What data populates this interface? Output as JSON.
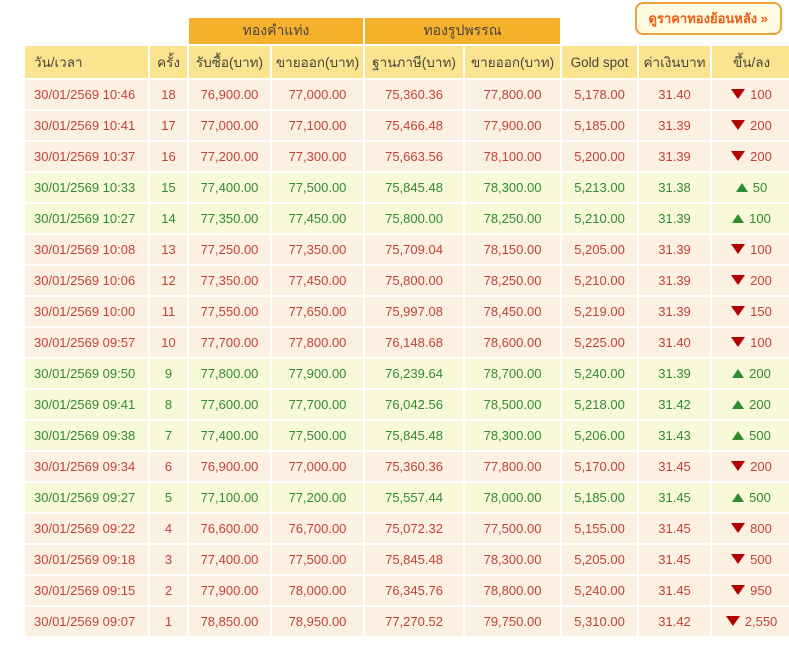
{
  "history_button": {
    "label": "ดูราคาทองย้อนหลัง »"
  },
  "table": {
    "group_headers": {
      "gold_bar": "ทองคำแท่ง",
      "gold_ornament": "ทองรูปพรรณ"
    },
    "columns": [
      "วัน/เวลา",
      "ครั้ง",
      "รับซื้อ(บาท)",
      "ขายออก(บาท)",
      "ฐานภาษี(บาท)",
      "ขายออก(บาท)",
      "Gold spot",
      "ค่าเงินบาท",
      "ขึ้น/ลง"
    ],
    "rows": [
      {
        "datetime": "30/01/2569 10:46",
        "round": "18",
        "bar_buy": "76,900.00",
        "bar_sell": "77,000.00",
        "orn_taxbase": "75,360.36",
        "orn_sell": "77,800.00",
        "gold_spot": "5,178.00",
        "baht_rate": "31.40",
        "direction": "down",
        "change": "100"
      },
      {
        "datetime": "30/01/2569 10:41",
        "round": "17",
        "bar_buy": "77,000.00",
        "bar_sell": "77,100.00",
        "orn_taxbase": "75,466.48",
        "orn_sell": "77,900.00",
        "gold_spot": "5,185.00",
        "baht_rate": "31.39",
        "direction": "down",
        "change": "200"
      },
      {
        "datetime": "30/01/2569 10:37",
        "round": "16",
        "bar_buy": "77,200.00",
        "bar_sell": "77,300.00",
        "orn_taxbase": "75,663.56",
        "orn_sell": "78,100.00",
        "gold_spot": "5,200.00",
        "baht_rate": "31.39",
        "direction": "down",
        "change": "200"
      },
      {
        "datetime": "30/01/2569 10:33",
        "round": "15",
        "bar_buy": "77,400.00",
        "bar_sell": "77,500.00",
        "orn_taxbase": "75,845.48",
        "orn_sell": "78,300.00",
        "gold_spot": "5,213.00",
        "baht_rate": "31.38",
        "direction": "up",
        "change": "50"
      },
      {
        "datetime": "30/01/2569 10:27",
        "round": "14",
        "bar_buy": "77,350.00",
        "bar_sell": "77,450.00",
        "orn_taxbase": "75,800.00",
        "orn_sell": "78,250.00",
        "gold_spot": "5,210.00",
        "baht_rate": "31.39",
        "direction": "up",
        "change": "100"
      },
      {
        "datetime": "30/01/2569 10:08",
        "round": "13",
        "bar_buy": "77,250.00",
        "bar_sell": "77,350.00",
        "orn_taxbase": "75,709.04",
        "orn_sell": "78,150.00",
        "gold_spot": "5,205.00",
        "baht_rate": "31.39",
        "direction": "down",
        "change": "100"
      },
      {
        "datetime": "30/01/2569 10:06",
        "round": "12",
        "bar_buy": "77,350.00",
        "bar_sell": "77,450.00",
        "orn_taxbase": "75,800.00",
        "orn_sell": "78,250.00",
        "gold_spot": "5,210.00",
        "baht_rate": "31.39",
        "direction": "down",
        "change": "200"
      },
      {
        "datetime": "30/01/2569 10:00",
        "round": "11",
        "bar_buy": "77,550.00",
        "bar_sell": "77,650.00",
        "orn_taxbase": "75,997.08",
        "orn_sell": "78,450.00",
        "gold_spot": "5,219.00",
        "baht_rate": "31.39",
        "direction": "down",
        "change": "150"
      },
      {
        "datetime": "30/01/2569 09:57",
        "round": "10",
        "bar_buy": "77,700.00",
        "bar_sell": "77,800.00",
        "orn_taxbase": "76,148.68",
        "orn_sell": "78,600.00",
        "gold_spot": "5,225.00",
        "baht_rate": "31.40",
        "direction": "down",
        "change": "100"
      },
      {
        "datetime": "30/01/2569 09:50",
        "round": "9",
        "bar_buy": "77,800.00",
        "bar_sell": "77,900.00",
        "orn_taxbase": "76,239.64",
        "orn_sell": "78,700.00",
        "gold_spot": "5,240.00",
        "baht_rate": "31.39",
        "direction": "up",
        "change": "200"
      },
      {
        "datetime": "30/01/2569 09:41",
        "round": "8",
        "bar_buy": "77,600.00",
        "bar_sell": "77,700.00",
        "orn_taxbase": "76,042.56",
        "orn_sell": "78,500.00",
        "gold_spot": "5,218.00",
        "baht_rate": "31.42",
        "direction": "up",
        "change": "200"
      },
      {
        "datetime": "30/01/2569 09:38",
        "round": "7",
        "bar_buy": "77,400.00",
        "bar_sell": "77,500.00",
        "orn_taxbase": "75,845.48",
        "orn_sell": "78,300.00",
        "gold_spot": "5,206.00",
        "baht_rate": "31.43",
        "direction": "up",
        "change": "500"
      },
      {
        "datetime": "30/01/2569 09:34",
        "round": "6",
        "bar_buy": "76,900.00",
        "bar_sell": "77,000.00",
        "orn_taxbase": "75,360.36",
        "orn_sell": "77,800.00",
        "gold_spot": "5,170.00",
        "baht_rate": "31.45",
        "direction": "down",
        "change": "200"
      },
      {
        "datetime": "30/01/2569 09:27",
        "round": "5",
        "bar_buy": "77,100.00",
        "bar_sell": "77,200.00",
        "orn_taxbase": "75,557.44",
        "orn_sell": "78,000.00",
        "gold_spot": "5,185.00",
        "baht_rate": "31.45",
        "direction": "up",
        "change": "500"
      },
      {
        "datetime": "30/01/2569 09:22",
        "round": "4",
        "bar_buy": "76,600.00",
        "bar_sell": "76,700.00",
        "orn_taxbase": "75,072.32",
        "orn_sell": "77,500.00",
        "gold_spot": "5,155.00",
        "baht_rate": "31.45",
        "direction": "down",
        "change": "800"
      },
      {
        "datetime": "30/01/2569 09:18",
        "round": "3",
        "bar_buy": "77,400.00",
        "bar_sell": "77,500.00",
        "orn_taxbase": "75,845.48",
        "orn_sell": "78,300.00",
        "gold_spot": "5,205.00",
        "baht_rate": "31.45",
        "direction": "down",
        "change": "500"
      },
      {
        "datetime": "30/01/2569 09:15",
        "round": "2",
        "bar_buy": "77,900.00",
        "bar_sell": "78,000.00",
        "orn_taxbase": "76,345.76",
        "orn_sell": "78,800.00",
        "gold_spot": "5,240.00",
        "baht_rate": "31.45",
        "direction": "down",
        "change": "950"
      },
      {
        "datetime": "30/01/2569 09:07",
        "round": "1",
        "bar_buy": "78,850.00",
        "bar_sell": "78,950.00",
        "orn_taxbase": "77,270.52",
        "orn_sell": "79,750.00",
        "gold_spot": "5,310.00",
        "baht_rate": "31.42",
        "direction": "down",
        "change": "2,550"
      }
    ]
  },
  "colors": {
    "group_header_bg": "#f5b02c",
    "header_bg": "#fae48f",
    "down_row_bg": "#fcf0e2",
    "up_row_bg": "#f7f9d8",
    "down_text": "#c2423a",
    "up_text": "#338a33",
    "down_arrow": "#b30000",
    "up_arrow": "#2e8b2e",
    "button_text": "#ef5a16",
    "button_border": "#eba13e"
  }
}
